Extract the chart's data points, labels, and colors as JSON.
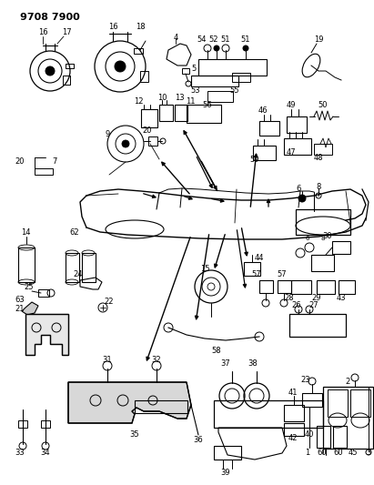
{
  "background_color": "#ffffff",
  "figsize": [
    4.11,
    5.33
  ],
  "dpi": 100,
  "title": "9708 7900"
}
